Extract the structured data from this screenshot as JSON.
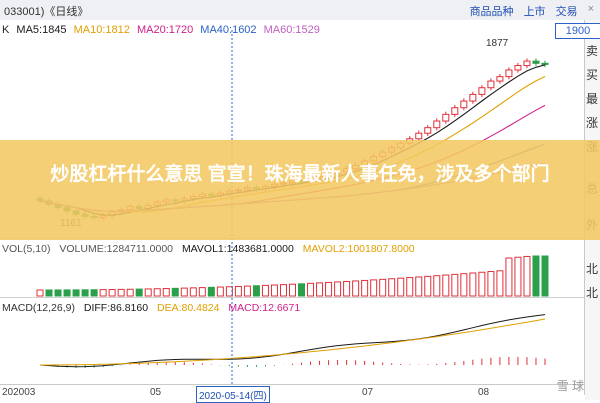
{
  "titlebar": {
    "code": "033001)《日线》",
    "links": [
      "商品品种",
      "上市",
      "交易"
    ],
    "close": "×"
  },
  "right_panel": {
    "price_box": "1900",
    "labels": [
      "卖",
      "买",
      "最",
      "涨",
      "涨",
      "总",
      "外",
      "北",
      "北"
    ]
  },
  "ma_row": {
    "k": "K",
    "ma5": "MA5:1845",
    "ma10": "MA10:1812",
    "ma20": "MA20:1720",
    "ma40": "MA40:1602",
    "ma60": "MA60:1529"
  },
  "annotations": {
    "high": "1877",
    "low": "1161"
  },
  "vol_row": {
    "label": "VOL(5,10)",
    "volume": "VOLUME:1284711.0000",
    "mavol1": "MAVOL1:1483681.0000",
    "mavol2": "MAVOL2:1001807.8000"
  },
  "macd_row": {
    "label": "MACD(12,26,9)",
    "diff": "DIFF:86.8160",
    "dea": "DEA:80.4824",
    "macd": "MACD:12.6671"
  },
  "xaxis": {
    "labels": [
      "202003",
      "05",
      "2020-05-14(四)",
      "07",
      "08"
    ]
  },
  "banner": {
    "title": "炒股杠杆什么意思 官宣！珠海最新人事任免，涉及多个部门"
  },
  "watermark": "雪 球",
  "colors": {
    "ma5": "#1a1a1a",
    "ma10": "#e0a000",
    "ma20": "#d0208a",
    "ma40": "#2a62c9",
    "ma60": "#c060c0",
    "up": "#e0303a",
    "down": "#2aa04a"
  },
  "chart_data": {
    "type": "candlestick",
    "title": "",
    "x": [
      "202003",
      "05",
      "2020-05-14(四)",
      "07",
      "08"
    ],
    "price": {
      "high_label": 1877,
      "low_label": 1161,
      "closes": [
        1240,
        1225,
        1210,
        1195,
        1180,
        1170,
        1165,
        1175,
        1190,
        1200,
        1215,
        1205,
        1220,
        1235,
        1245,
        1240,
        1250,
        1260,
        1270,
        1265,
        1275,
        1285,
        1290,
        1300,
        1295,
        1305,
        1315,
        1320,
        1330,
        1325,
        1340,
        1350,
        1360,
        1370,
        1385,
        1400,
        1420,
        1440,
        1460,
        1480,
        1500,
        1520,
        1545,
        1570,
        1600,
        1630,
        1660,
        1690,
        1720,
        1750,
        1780,
        1800,
        1830,
        1850,
        1870,
        1860,
        1855
      ]
    },
    "series": [
      {
        "name": "MA5",
        "last": 1845
      },
      {
        "name": "MA10",
        "last": 1812
      },
      {
        "name": "MA20",
        "last": 1720
      },
      {
        "name": "MA40",
        "last": 1602
      },
      {
        "name": "MA60",
        "last": 1529
      }
    ],
    "volume": {
      "volume": 1284711.0,
      "mavol1": 1483681.0,
      "mavol2": 1001807.8
    },
    "macd": {
      "diff": 86.816,
      "dea": 80.4824,
      "macd": 12.6671
    }
  }
}
